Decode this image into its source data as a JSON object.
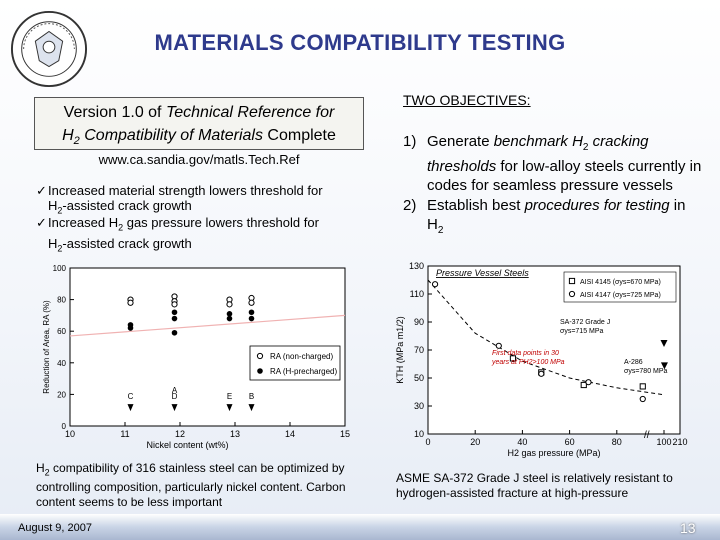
{
  "title": "MATERIALS COMPATIBILITY TESTING",
  "logo": {
    "name": "doe-seal-icon"
  },
  "left": {
    "box_line1_pre": "Version 1.0 of ",
    "box_line1_italic": "Technical Reference for",
    "box_line2_h": "H",
    "box_line2_sub": "2",
    "box_line2_italic": " Compatibility of Materials",
    "box_line2_post": " Complete",
    "url": "www.ca.sandia.gov/matls.Tech.Ref",
    "bullets": [
      {
        "line1": "Increased material strength lowers threshold for",
        "line2_pre": "H",
        "line2_sub": "2",
        "line2_post": "-assisted crack growth"
      },
      {
        "line1_pre": "Increased H",
        "line1_sub": "2",
        "line1_post": " gas pressure lowers threshold for",
        "line2_pre": "H",
        "line2_sub": "2",
        "line2_post": "-assisted crack growth"
      }
    ],
    "caption_pre": "H",
    "caption_sub": "2",
    "caption_post": " compatibility of 316 stainless steel can be optimized by controlling composition, particularly nickel content. Carbon content seems to be less important"
  },
  "right": {
    "heading": "TWO OBJECTIVES:",
    "items": [
      {
        "num": "1)",
        "pre": "Generate ",
        "italic": "benchmark H",
        "sub": "2",
        "italic2": " cracking thresholds",
        "post": " for low-alloy steels currently in codes for seamless pressure vessels"
      },
      {
        "num": "2)",
        "pre": "Establish best ",
        "italic": "procedures for testing",
        "post": " in H",
        "sub": "2"
      }
    ],
    "caption": "ASME SA-372 Grade J steel is relatively resistant to hydrogen-assisted fracture at high-pressure"
  },
  "footer": {
    "date": "August 9, 2007",
    "page": "13"
  },
  "chart_data": [
    {
      "type": "scatter",
      "title": "",
      "xlabel": "Nickel content (wt%)",
      "ylabel": "Reduction of Area, RA (%)",
      "xlim": [
        10,
        15
      ],
      "ylim": [
        0,
        100
      ],
      "xticks": [
        "10",
        "11",
        "12",
        "13",
        "14",
        "15"
      ],
      "yticks": [
        "0",
        "20",
        "40",
        "60",
        "80",
        "100"
      ],
      "legend_position": "bottom-right",
      "series": [
        {
          "name": "RA (non-charged)",
          "marker": "open-circle",
          "color": "#000000",
          "points": [
            [
              11.1,
              80
            ],
            [
              11.1,
              78
            ],
            [
              11.9,
              82
            ],
            [
              11.9,
              79
            ],
            [
              11.9,
              77
            ],
            [
              12.9,
              80
            ],
            [
              12.9,
              77
            ],
            [
              13.3,
              81
            ],
            [
              13.3,
              78
            ]
          ]
        },
        {
          "name": "RA (H-precharged)",
          "marker": "filled-circle",
          "color": "#000000",
          "points": [
            [
              11.1,
              64
            ],
            [
              11.1,
              62
            ],
            [
              11.9,
              72
            ],
            [
              11.9,
              68
            ],
            [
              11.9,
              59
            ],
            [
              12.9,
              71
            ],
            [
              12.9,
              68
            ],
            [
              13.3,
              72
            ],
            [
              13.3,
              68
            ]
          ]
        }
      ],
      "trend": {
        "x": [
          10,
          15
        ],
        "y": [
          57,
          70
        ],
        "color": "#f0b2b2"
      },
      "point_labels": [
        {
          "label": "C",
          "x": 11.1,
          "y": 17
        },
        {
          "label": "A",
          "x": 11.9,
          "y": 21
        },
        {
          "label": "D",
          "x": 11.9,
          "y": 17
        },
        {
          "label": "E",
          "x": 12.9,
          "y": 17
        },
        {
          "label": "B",
          "x": 13.3,
          "y": 17
        }
      ]
    },
    {
      "type": "scatter",
      "title": "Pressure Vessel Steels",
      "xlabel": "H2 gas pressure (MPa)",
      "ylabel": "KTH (MPa m1/2)",
      "xlim": [
        0,
        210
      ],
      "ylim": [
        10,
        130
      ],
      "xticks": [
        "0",
        "20",
        "40",
        "60",
        "80",
        "100",
        "210"
      ],
      "yticks": [
        "10",
        "30",
        "50",
        "70",
        "90",
        "110",
        "130"
      ],
      "legend_position": "top-right",
      "series": [
        {
          "name": "AISI 4145 (σys=670 MPa)",
          "marker": "open-square",
          "color": "#000000",
          "points": [
            [
              36,
              64
            ],
            [
              48,
              54
            ],
            [
              66,
              45
            ],
            [
              91,
              44
            ]
          ]
        },
        {
          "name": "AISI 4147 (σys=725 MPa)",
          "marker": "open-circle",
          "color": "#000000",
          "points": [
            [
              3,
              117
            ],
            [
              30,
              73
            ],
            [
              48,
              53
            ],
            [
              68,
              47
            ],
            [
              91,
              35
            ]
          ]
        },
        {
          "name": "SA-372 Grade J σys=715 MPa",
          "marker": "filled-triangle",
          "color": "#000000",
          "points": [
            [
              100,
              75
            ]
          ]
        },
        {
          "name": "A-286 σys=780 MPa",
          "marker": "filled-triangle",
          "color": "#000000",
          "points": [
            [
              102,
              59
            ]
          ]
        }
      ],
      "trend": {
        "x": [
          0,
          20,
          40,
          60,
          80,
          100
        ],
        "y": [
          120,
          82,
          62,
          50,
          43,
          38
        ],
        "color": "#000000",
        "style": "dashed"
      },
      "annotations": [
        {
          "text": "AISI 4145 (σys=670 MPa)"
        },
        {
          "text": "AISI 4147 (σys=725 MPa)"
        },
        {
          "text": "SA-372 Grade J"
        },
        {
          "text": "σys=715 MPa"
        },
        {
          "text": "A-286"
        },
        {
          "text": "σys=780 MPa"
        },
        {
          "text": "First data points in 30 years at PH2>100 MPa",
          "color": "#c00000"
        }
      ]
    }
  ]
}
